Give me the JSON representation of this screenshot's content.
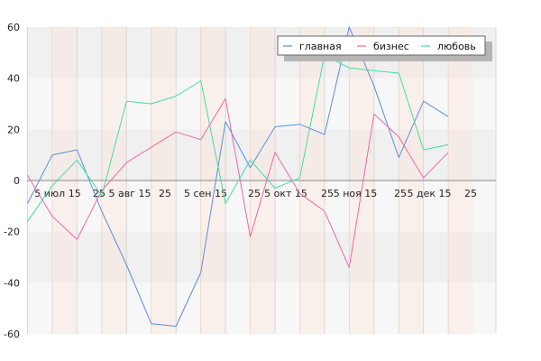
{
  "chart_data": {
    "type": "line",
    "title": "",
    "xlabel": "",
    "ylabel": "",
    "ylim": [
      -60,
      60
    ],
    "y_ticks": [
      -60,
      -40,
      -20,
      0,
      20,
      40,
      60
    ],
    "grid": true,
    "legend_position": "top-right",
    "x_tick_labels": [
      "5 июл 15",
      "25",
      "5 авг 15",
      "25",
      "5 сен 15",
      "25",
      "5 окт 15",
      "25",
      "5 ноя 15",
      "25",
      "5 дек 15",
      "25"
    ],
    "series": [
      {
        "name": "главная",
        "color": "#5b8fd9",
        "values": [
          -9,
          10,
          12,
          -12,
          -33,
          -56,
          -57,
          -36,
          23,
          5,
          21,
          22,
          18,
          60,
          37,
          9,
          31,
          25
        ]
      },
      {
        "name": "бизнес",
        "color": "#e86aa6",
        "values": [
          2,
          -14,
          -23,
          -4,
          7,
          13,
          19,
          16,
          32,
          -22,
          11,
          -5,
          -12,
          -34,
          26,
          17,
          1,
          11
        ]
      },
      {
        "name": "любовь",
        "color": "#44dbaa",
        "values": [
          -16,
          -2,
          8,
          -6,
          31,
          30,
          33,
          39,
          -9,
          8,
          -3,
          1,
          49,
          44,
          43,
          42,
          12,
          14
        ]
      }
    ]
  }
}
